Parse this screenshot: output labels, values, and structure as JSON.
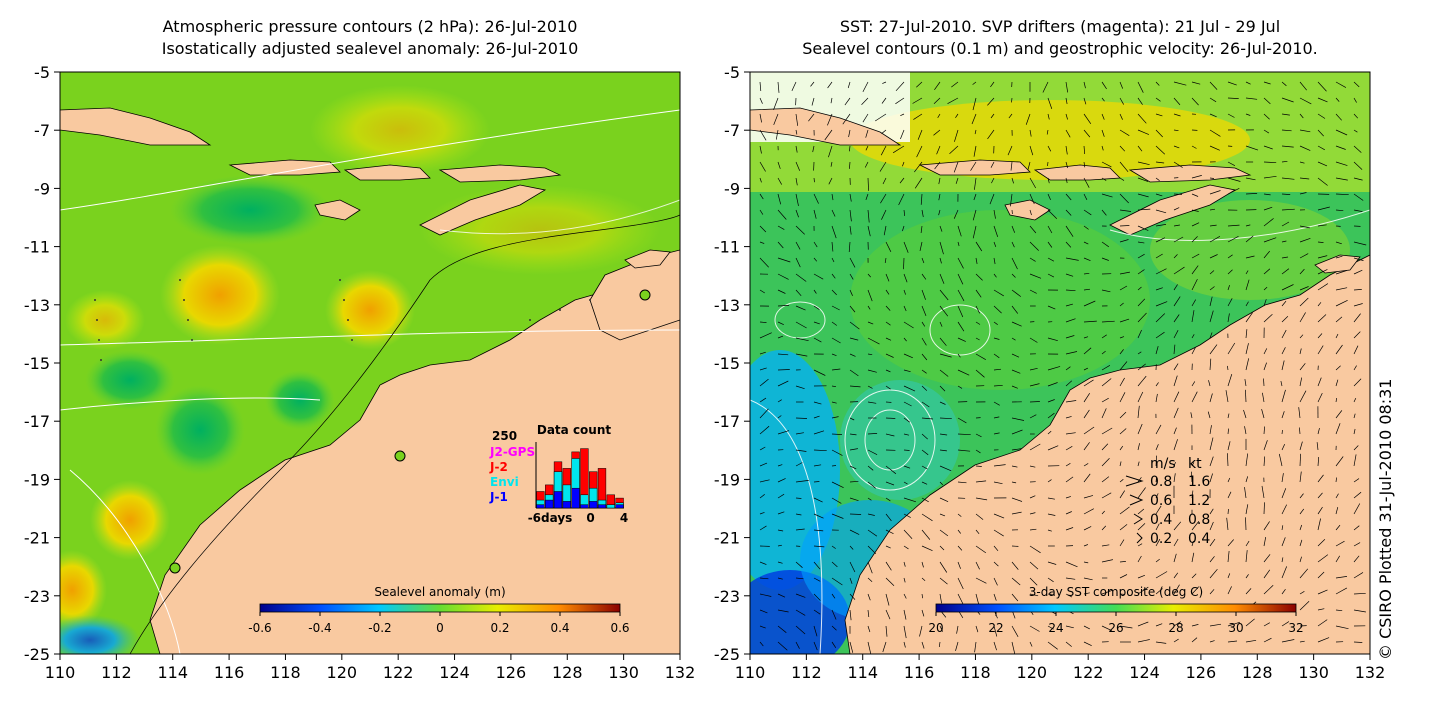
{
  "left_panel": {
    "title_line1": "Atmospheric pressure contours (2 hPa): 26-Jul-2010",
    "title_line2": "Isostatically adjusted sealevel anomaly: 26-Jul-2010",
    "colorbar_label": "Sealevel anomaly (m)",
    "colorbar_ticks": [
      "-0.6",
      "-0.4",
      "-0.2",
      "0",
      "0.2",
      "0.4",
      "0.6"
    ],
    "colorbar_range": [
      -0.6,
      0.6
    ],
    "histogram": {
      "title": "Data count",
      "ymax_label": "250",
      "x_labels": [
        "-6days",
        "0",
        "4"
      ],
      "legend": [
        {
          "name": "J2-GPS",
          "color": "#ff00ff"
        },
        {
          "name": "J-2",
          "color": "#ff0000"
        },
        {
          "name": "Envi",
          "color": "#00e5ee"
        },
        {
          "name": "J-1",
          "color": "#0000ff"
        }
      ],
      "bars_red": [
        0.25,
        0.35,
        0.7,
        0.6,
        0.85,
        0.9,
        0.55,
        0.6,
        0.2,
        0.15
      ],
      "bars_cyan": [
        0.12,
        0.2,
        0.55,
        0.35,
        0.75,
        0.2,
        0.3,
        0.12,
        0.05,
        0.08
      ],
      "bars_blue": [
        0.05,
        0.12,
        0.25,
        0.1,
        0.3,
        0.05,
        0.1,
        0.05,
        0.0,
        0.05
      ]
    }
  },
  "right_panel": {
    "title_line1": "SST: 27-Jul-2010. SVP drifters (magenta): 21 Jul - 29 Jul",
    "title_line2": "Sealevel contours (0.1 m) and geostrophic velocity: 26-Jul-2010.",
    "colorbar_label": "3-day SST composite (deg C)",
    "colorbar_ticks": [
      "20",
      "22",
      "24",
      "26",
      "28",
      "30",
      "32"
    ],
    "colorbar_range": [
      20,
      32
    ],
    "velocity_key": {
      "header_ms": "m/s",
      "header_kt": "kt",
      "rows": [
        {
          "ms": "0.8",
          "kt": "1.6"
        },
        {
          "ms": "0.6",
          "kt": "1.2"
        },
        {
          "ms": "0.4",
          "kt": "0.8"
        },
        {
          "ms": "0.2",
          "kt": "0.4"
        }
      ]
    }
  },
  "axes": {
    "x_ticks": [
      "110",
      "112",
      "114",
      "116",
      "118",
      "120",
      "122",
      "124",
      "126",
      "128",
      "130",
      "132"
    ],
    "x_range": [
      110,
      132
    ],
    "y_ticks": [
      "-5",
      "-7",
      "-9",
      "-11",
      "-13",
      "-15",
      "-17",
      "-19",
      "-21",
      "-23",
      "-25"
    ],
    "y_range": [
      -25,
      -5
    ]
  },
  "copyright": "© CSIRO Plotted 31-Jul-2010 08:31",
  "colors": {
    "land": "#f9c9a0",
    "anomaly_base": "#7ad21e",
    "sst_base": "#3cc45a",
    "coast": "#000000"
  }
}
